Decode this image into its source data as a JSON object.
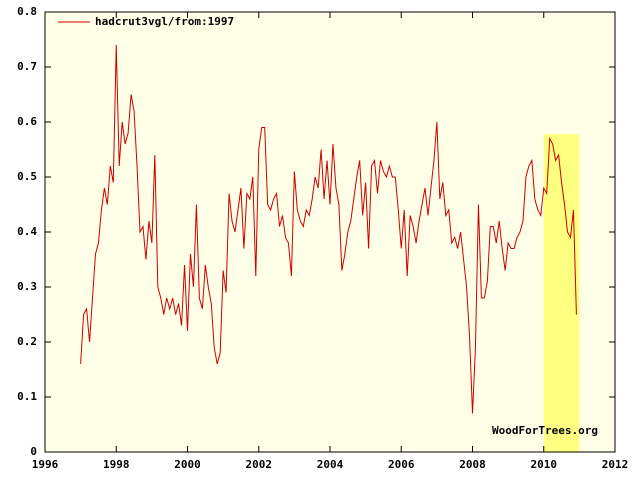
{
  "chart_data": {
    "type": "line",
    "legend": "top-left",
    "watermark": "WoodForTrees.org",
    "background": "#ffffe8",
    "series": [
      {
        "name": "hadcrut3vgl/from:1997",
        "color": "#cc0000",
        "x": [
          1997,
          1997.083,
          1997.167,
          1997.25,
          1997.333,
          1997.417,
          1997.5,
          1997.583,
          1997.667,
          1997.75,
          1997.833,
          1997.917,
          1998,
          1998.083,
          1998.167,
          1998.25,
          1998.333,
          1998.417,
          1998.5,
          1998.583,
          1998.667,
          1998.75,
          1998.833,
          1998.917,
          1999,
          1999.083,
          1999.167,
          1999.25,
          1999.333,
          1999.417,
          1999.5,
          1999.583,
          1999.667,
          1999.75,
          1999.833,
          1999.917,
          2000,
          2000.083,
          2000.167,
          2000.25,
          2000.333,
          2000.417,
          2000.5,
          2000.583,
          2000.667,
          2000.75,
          2000.833,
          2000.917,
          2001,
          2001.083,
          2001.167,
          2001.25,
          2001.333,
          2001.417,
          2001.5,
          2001.583,
          2001.667,
          2001.75,
          2001.833,
          2001.917,
          2002,
          2002.083,
          2002.167,
          2002.25,
          2002.333,
          2002.417,
          2002.5,
          2002.583,
          2002.667,
          2002.75,
          2002.833,
          2002.917,
          2003,
          2003.083,
          2003.167,
          2003.25,
          2003.333,
          2003.417,
          2003.5,
          2003.583,
          2003.667,
          2003.75,
          2003.833,
          2003.917,
          2004,
          2004.083,
          2004.167,
          2004.25,
          2004.333,
          2004.417,
          2004.5,
          2004.583,
          2004.667,
          2004.75,
          2004.833,
          2004.917,
          2005,
          2005.083,
          2005.167,
          2005.25,
          2005.333,
          2005.417,
          2005.5,
          2005.583,
          2005.667,
          2005.75,
          2005.833,
          2005.917,
          2006,
          2006.083,
          2006.167,
          2006.25,
          2006.333,
          2006.417,
          2006.5,
          2006.583,
          2006.667,
          2006.75,
          2006.833,
          2006.917,
          2007,
          2007.083,
          2007.167,
          2007.25,
          2007.333,
          2007.417,
          2007.5,
          2007.583,
          2007.667,
          2007.75,
          2007.833,
          2007.917,
          2008,
          2008.083,
          2008.167,
          2008.25,
          2008.333,
          2008.417,
          2008.5,
          2008.583,
          2008.667,
          2008.75,
          2008.833,
          2008.917,
          2009,
          2009.083,
          2009.167,
          2009.25,
          2009.333,
          2009.417,
          2009.5,
          2009.583,
          2009.667,
          2009.75,
          2009.833,
          2009.917,
          2010,
          2010.083,
          2010.167,
          2010.25,
          2010.333,
          2010.417,
          2010.5,
          2010.583,
          2010.667,
          2010.75,
          2010.833,
          2010.917
        ],
        "values": [
          0.16,
          0.25,
          0.26,
          0.2,
          0.28,
          0.36,
          0.38,
          0.44,
          0.48,
          0.45,
          0.52,
          0.49,
          0.74,
          0.52,
          0.6,
          0.56,
          0.58,
          0.65,
          0.62,
          0.52,
          0.4,
          0.41,
          0.35,
          0.42,
          0.38,
          0.54,
          0.3,
          0.28,
          0.25,
          0.28,
          0.26,
          0.28,
          0.25,
          0.27,
          0.23,
          0.34,
          0.22,
          0.36,
          0.3,
          0.45,
          0.28,
          0.26,
          0.34,
          0.3,
          0.27,
          0.19,
          0.16,
          0.18,
          0.33,
          0.29,
          0.47,
          0.42,
          0.4,
          0.44,
          0.48,
          0.37,
          0.47,
          0.46,
          0.5,
          0.32,
          0.55,
          0.59,
          0.59,
          0.45,
          0.44,
          0.46,
          0.47,
          0.41,
          0.43,
          0.39,
          0.38,
          0.32,
          0.51,
          0.44,
          0.42,
          0.41,
          0.44,
          0.43,
          0.46,
          0.5,
          0.48,
          0.55,
          0.46,
          0.53,
          0.45,
          0.56,
          0.48,
          0.45,
          0.33,
          0.36,
          0.4,
          0.42,
          0.46,
          0.5,
          0.53,
          0.43,
          0.49,
          0.37,
          0.52,
          0.53,
          0.47,
          0.53,
          0.51,
          0.5,
          0.52,
          0.5,
          0.5,
          0.44,
          0.37,
          0.44,
          0.32,
          0.43,
          0.41,
          0.38,
          0.42,
          0.45,
          0.48,
          0.43,
          0.48,
          0.53,
          0.6,
          0.46,
          0.49,
          0.43,
          0.44,
          0.38,
          0.39,
          0.37,
          0.4,
          0.35,
          0.3,
          0.21,
          0.07,
          0.19,
          0.45,
          0.28,
          0.28,
          0.31,
          0.41,
          0.41,
          0.38,
          0.42,
          0.37,
          0.33,
          0.38,
          0.37,
          0.37,
          0.39,
          0.4,
          0.42,
          0.5,
          0.52,
          0.53,
          0.46,
          0.44,
          0.43,
          0.48,
          0.47,
          0.57,
          0.56,
          0.53,
          0.54,
          0.49,
          0.45,
          0.4,
          0.39,
          0.44,
          0.25
        ]
      }
    ],
    "highlight": {
      "color": "#ffff80",
      "xlim": [
        2010,
        2011
      ],
      "ylim": [
        0,
        0.578
      ]
    },
    "xlim": [
      1996,
      2012
    ],
    "xticks": [
      1996,
      1998,
      2000,
      2002,
      2004,
      2006,
      2008,
      2010,
      2012
    ],
    "ylim": [
      0,
      0.8
    ],
    "yticks": [
      0,
      0.1,
      0.2,
      0.3,
      0.4,
      0.5,
      0.6,
      0.7,
      0.8
    ]
  }
}
